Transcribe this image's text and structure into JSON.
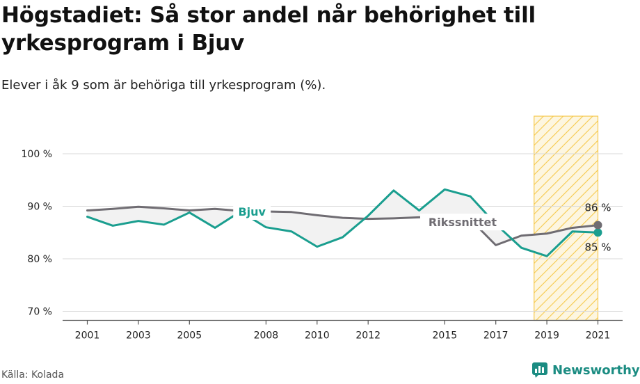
{
  "header": {
    "title": "Högstadiet: Så stor andel når behörighet till yrkesprogram i Bjuv",
    "subtitle": "Elever i åk 9 som är behöriga till yrkesprogram (%)."
  },
  "footer": {
    "source": "Källa: Kolada",
    "brand": "Newsworthy"
  },
  "colors": {
    "bjuv": "#1a9e8f",
    "riket": "#6f6c72",
    "fill_between": "#f2f2f2",
    "highlight": "#f6c94c",
    "grid": "#d9d9d9"
  },
  "chart_data": {
    "type": "line",
    "title": "Högstadiet: Så stor andel når behörighet till yrkesprogram i Bjuv",
    "subtitle": "Elever i åk 9 som är behöriga till yrkesprogram (%).",
    "xlabel": "",
    "ylabel": "",
    "ylim": [
      68,
      107
    ],
    "xlim": [
      2000,
      2022
    ],
    "y_ticks": [
      70,
      80,
      90,
      100
    ],
    "y_tick_labels": [
      "70 %",
      "80 %",
      "90 %",
      "100 %"
    ],
    "x_ticks": [
      2001,
      2003,
      2005,
      2008,
      2010,
      2012,
      2015,
      2017,
      2019,
      2021
    ],
    "x_tick_labels": [
      "2001",
      "2003",
      "2005",
      "2008",
      "2010",
      "2012",
      "2015",
      "2017",
      "2019",
      "2021"
    ],
    "grid": true,
    "highlight_period": [
      2018.5,
      2021
    ],
    "x": [
      2001,
      2002,
      2003,
      2004,
      2005,
      2006,
      2007,
      2008,
      2009,
      2010,
      2011,
      2012,
      2013,
      2014,
      2015,
      2016,
      2017,
      2018,
      2019,
      2020,
      2021
    ],
    "series": [
      {
        "name": "Bjuv",
        "key": "bjuv",
        "values": [
          88.0,
          86.3,
          87.2,
          86.5,
          88.8,
          85.9,
          89.0,
          86.0,
          85.2,
          82.3,
          84.1,
          88.2,
          93.0,
          89.2,
          93.2,
          91.9,
          86.6,
          82.1,
          80.5,
          85.2,
          85.0
        ],
        "end_label": "85 %"
      },
      {
        "name": "Rikssnittet",
        "key": "riket",
        "values": [
          89.2,
          89.5,
          89.9,
          89.6,
          89.2,
          89.5,
          89.1,
          89.0,
          88.9,
          88.3,
          87.8,
          87.6,
          87.7,
          87.9,
          88.0,
          87.5,
          82.6,
          84.4,
          84.8,
          85.9,
          86.4
        ],
        "end_label": "86 %"
      }
    ]
  }
}
